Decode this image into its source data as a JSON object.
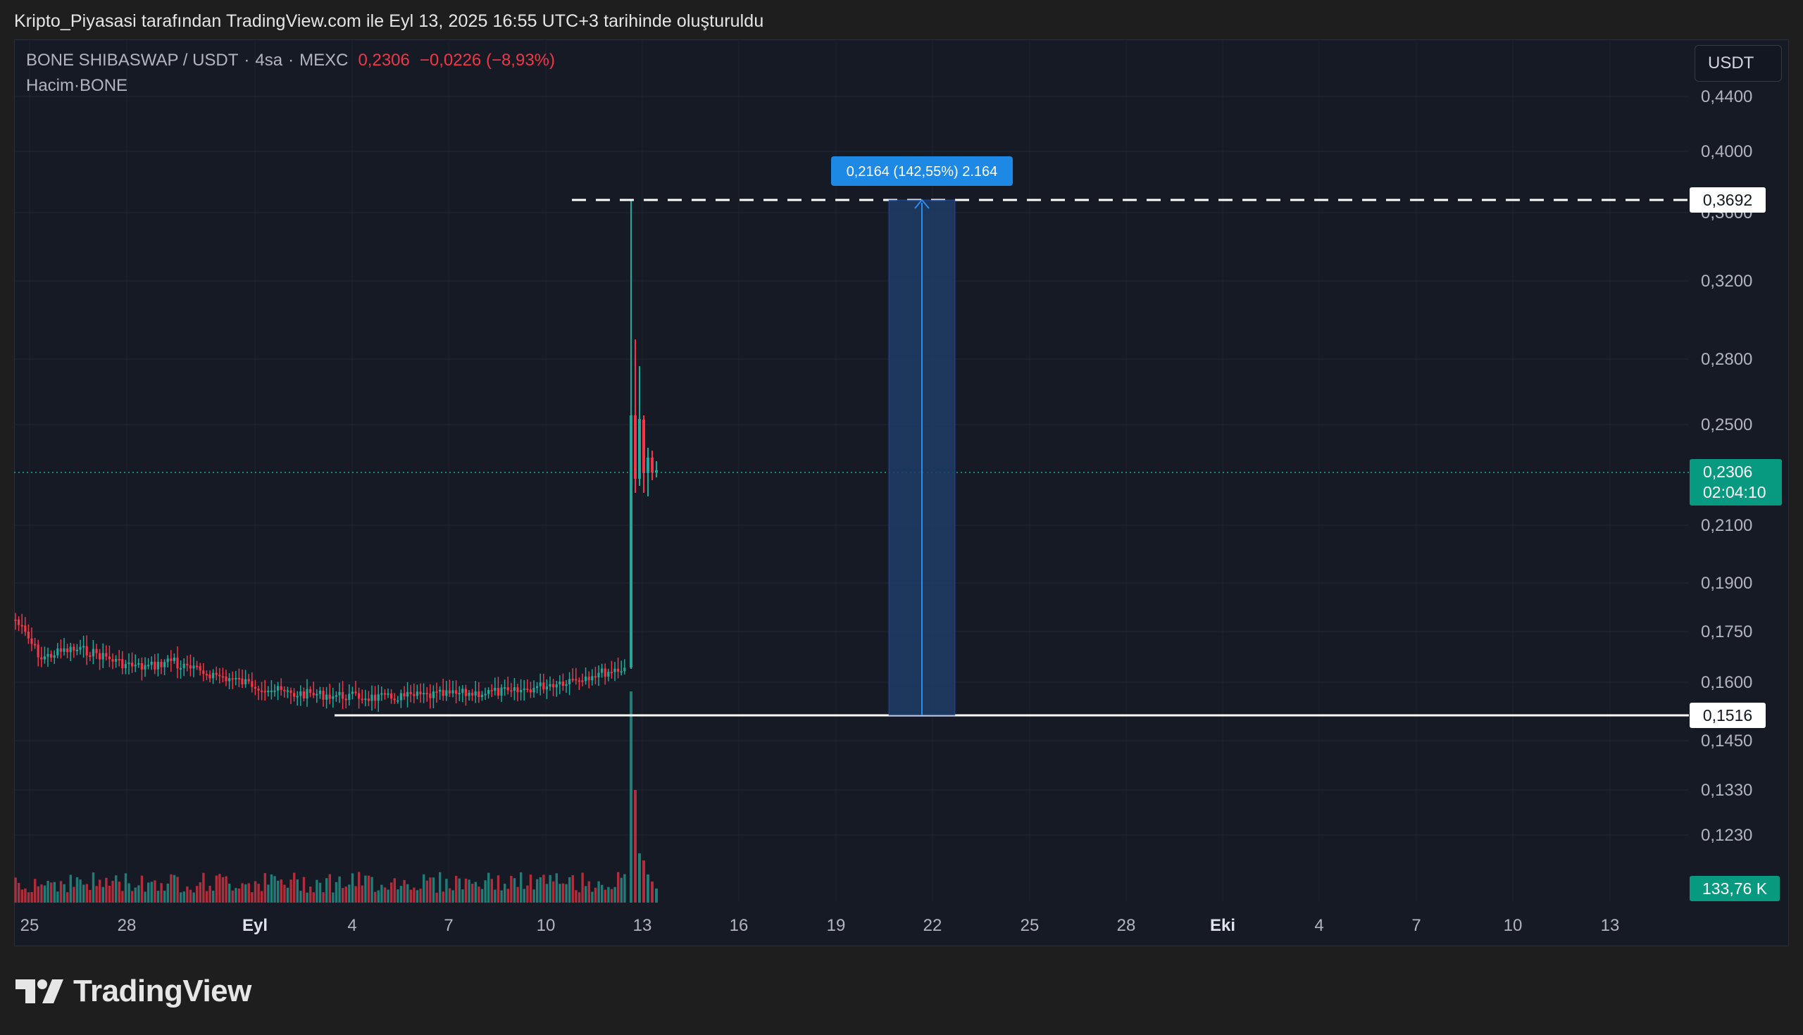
{
  "header": {
    "attribution": "Kripto_Piyasasi tarafından TradingView.com ile Eyl 13, 2025 16:55 UTC+3 tarihinde oluşturuldu"
  },
  "legend": {
    "symbol": "BONE SHIBASWAP / USDT",
    "interval": "4sa",
    "exchange": "MEXC",
    "last_price": "0,2306",
    "change": "−0,0226 (−8,93%)",
    "volume_label": "Hacim",
    "volume_symbol": "BONE"
  },
  "currency_button": "USDT",
  "price_axis": {
    "ticks": [
      "0,4400",
      "0,4000",
      "0,3600",
      "0,3200",
      "0,2800",
      "0,2500",
      "0,2100",
      "0,1900",
      "0,1750",
      "0,1600",
      "0,1450",
      "0,1330",
      "0,1230"
    ],
    "top_line_label": "0,3692",
    "current_price_label": "0,2306",
    "countdown_label": "02:04:10",
    "bottom_line_label": "0,1516",
    "volume_label": "133,76 K"
  },
  "time_axis": {
    "ticks": [
      "25",
      "28",
      "Eyl",
      "4",
      "7",
      "10",
      "13",
      "16",
      "19",
      "22",
      "25",
      "28",
      "Eki",
      "4",
      "7",
      "10",
      "13"
    ],
    "bold_ticks": [
      "Eyl",
      "Eki"
    ]
  },
  "measure_tool": {
    "label": "0,2164 (142,55%) 2.164"
  },
  "footer": {
    "brand": "TradingView"
  },
  "colors": {
    "up": "#26a69a",
    "down": "#f23645",
    "background": "#161a25",
    "measure_fill": "#1e3a5f",
    "measure_label_bg": "#2979ff"
  },
  "icons": [
    "tradingview-logo-icon"
  ]
}
